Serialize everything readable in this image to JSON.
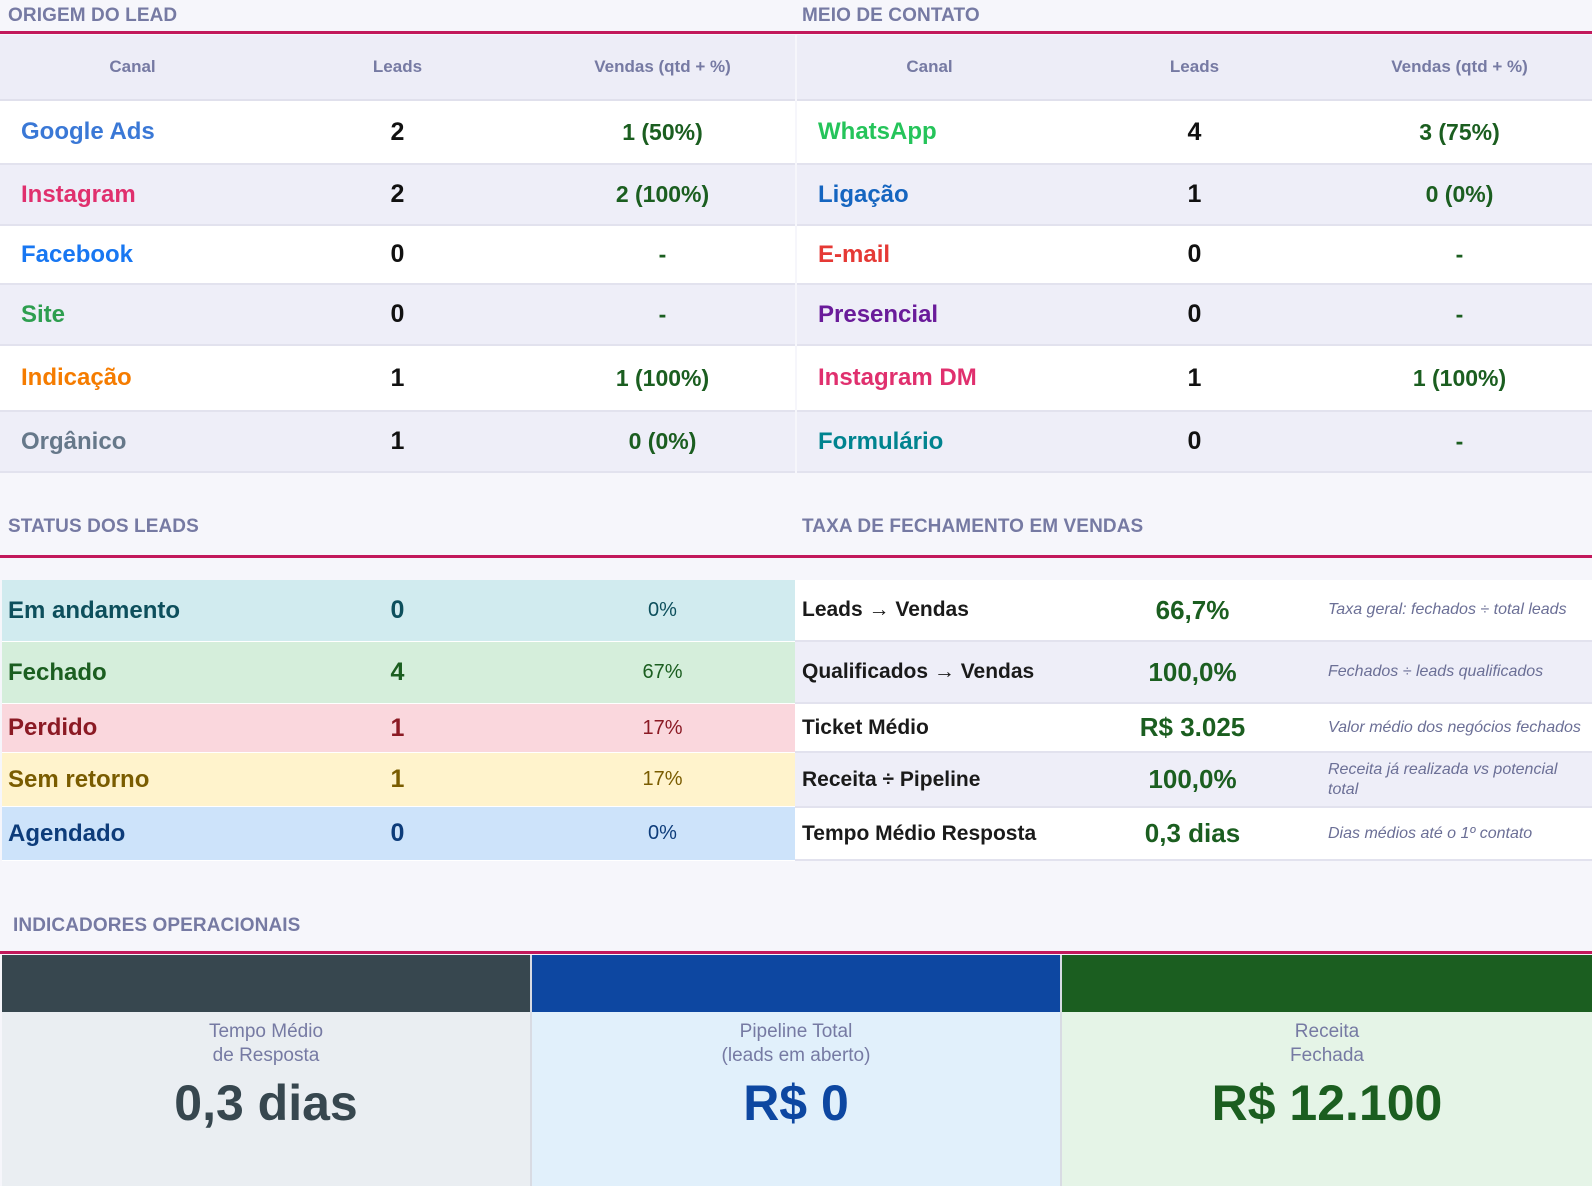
{
  "origem": {
    "title": "ORIGEM DO LEAD",
    "headers": [
      "Canal",
      "Leads",
      "Vendas (qtd + %)"
    ],
    "rows": [
      {
        "canal": "Google Ads",
        "leads": "2",
        "vendas": "1 (50%)",
        "color": "#3a78d6"
      },
      {
        "canal": "Instagram",
        "leads": "2",
        "vendas": "2 (100%)",
        "color": "#e0306e"
      },
      {
        "canal": "Facebook",
        "leads": "0",
        "vendas": "-",
        "color": "#1877f2"
      },
      {
        "canal": "Site",
        "leads": "0",
        "vendas": "-",
        "color": "#2e9e4f"
      },
      {
        "canal": "Indicação",
        "leads": "1",
        "vendas": "1 (100%)",
        "color": "#f57c00"
      },
      {
        "canal": "Orgânico",
        "leads": "1",
        "vendas": "0 (0%)",
        "color": "#66788a"
      }
    ]
  },
  "meio": {
    "title": "MEIO DE CONTATO",
    "headers": [
      "Canal",
      "Leads",
      "Vendas (qtd + %)"
    ],
    "rows": [
      {
        "canal": "WhatsApp",
        "leads": "4",
        "vendas": "3 (75%)",
        "color": "#25c45a"
      },
      {
        "canal": "Ligação",
        "leads": "1",
        "vendas": "0 (0%)",
        "color": "#1565c0"
      },
      {
        "canal": "E-mail",
        "leads": "0",
        "vendas": "-",
        "color": "#e53935"
      },
      {
        "canal": "Presencial",
        "leads": "0",
        "vendas": "-",
        "color": "#6a1b9a"
      },
      {
        "canal": "Instagram DM",
        "leads": "1",
        "vendas": "1 (100%)",
        "color": "#e0306e"
      },
      {
        "canal": "Formulário",
        "leads": "0",
        "vendas": "-",
        "color": "#00838f"
      }
    ]
  },
  "status": {
    "title": "STATUS DOS LEADS",
    "rows": [
      {
        "label": "Em andamento",
        "count": "0",
        "pct": "0%",
        "bg": "#d1ebef",
        "color": "#0d4f5c"
      },
      {
        "label": "Fechado",
        "count": "4",
        "pct": "67%",
        "bg": "#d5eedb",
        "color": "#1b5e20"
      },
      {
        "label": "Perdido",
        "count": "1",
        "pct": "17%",
        "bg": "#fad7dd",
        "color": "#8b1a24"
      },
      {
        "label": "Sem retorno",
        "count": "1",
        "pct": "17%",
        "bg": "#fff3cc",
        "color": "#7a5c00"
      },
      {
        "label": "Agendado",
        "count": "0",
        "pct": "0%",
        "bg": "#cde3fa",
        "color": "#0d3c7a"
      }
    ]
  },
  "taxa": {
    "title": "TAXA DE FECHAMENTO EM VENDAS",
    "rows": [
      {
        "label": "Leads → Vendas",
        "value": "66,7%",
        "note": "Taxa geral: fechados ÷ total leads"
      },
      {
        "label": "Qualificados → Vendas",
        "value": "100,0%",
        "note": "Fechados ÷ leads qualificados"
      },
      {
        "label": "Ticket Médio",
        "value": "R$ 3.025",
        "note": "Valor médio dos negócios fechados"
      },
      {
        "label": "Receita ÷ Pipeline",
        "value": "100,0%",
        "note": "Receita já realizada vs potencial total"
      },
      {
        "label": "Tempo Médio Resposta",
        "value": "0,3 dias",
        "note": "Dias médios até o 1º contato"
      }
    ]
  },
  "indicadores": {
    "title": "INDICADORES OPERACIONAIS",
    "cards": [
      {
        "label_line1": "Tempo Médio",
        "label_line2": "de Resposta",
        "value": "0,3 dias",
        "band": "#37474f",
        "bg": "#eaeef2",
        "color": "#37474f"
      },
      {
        "label_line1": "Pipeline Total",
        "label_line2": "(leads em aberto)",
        "value": "R$ 0",
        "band": "#0d47a1",
        "bg": "#e1f0fb",
        "color": "#0d47a1"
      },
      {
        "label_line1": "Receita",
        "label_line2": "Fechada",
        "value": "R$ 12.100",
        "band": "#1b5e20",
        "bg": "#e5f4e7",
        "color": "#1b5e20"
      }
    ]
  }
}
